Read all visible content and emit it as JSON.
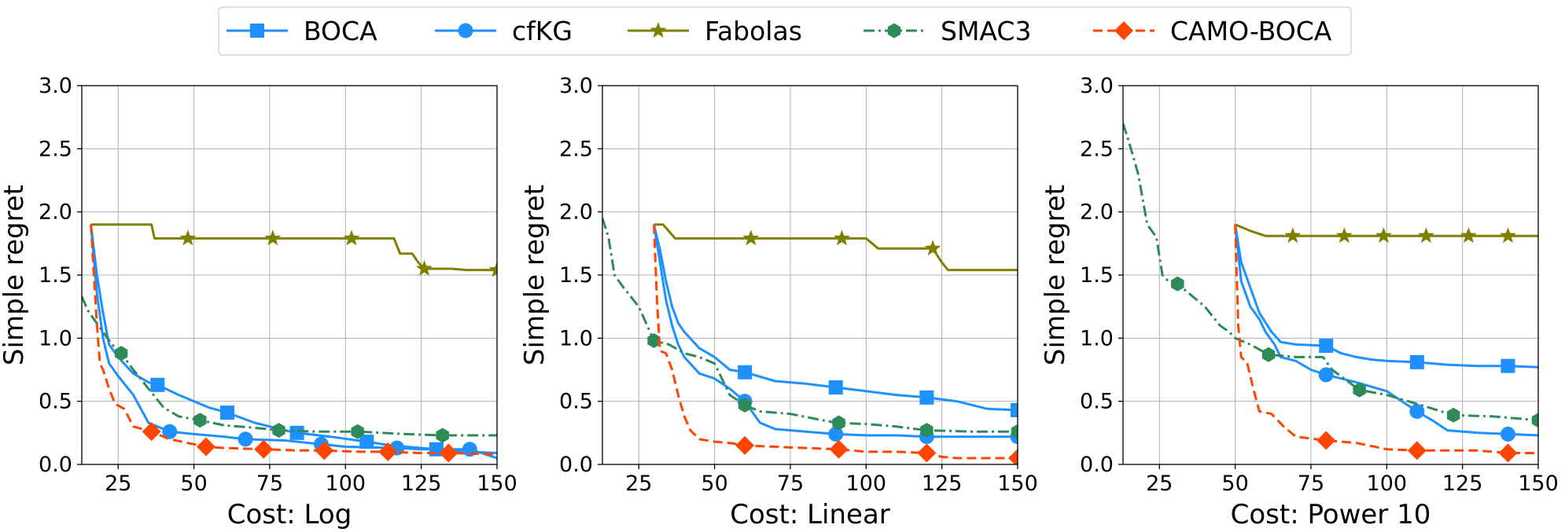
{
  "legend": {
    "placement": "top-center",
    "entries": [
      {
        "name": "BOCA",
        "color": "#1E90FF",
        "marker": "square",
        "dash": "solid"
      },
      {
        "name": "cfKG",
        "color": "#1E90FF",
        "marker": "circle",
        "dash": "solid"
      },
      {
        "name": "Fabolas",
        "color": "#808000",
        "marker": "star",
        "dash": "solid"
      },
      {
        "name": "SMAC3",
        "color": "#2E8B57",
        "marker": "hexagon",
        "dash": "dashdot"
      },
      {
        "name": "CAMO-BOCA",
        "color": "#FF4500",
        "marker": "diamond",
        "dash": "dashed"
      }
    ]
  },
  "chart_data": [
    {
      "type": "line",
      "xlabel": "Cost: Log",
      "ylabel": "Simple regret",
      "xlim": [
        13,
        150
      ],
      "ylim": [
        0,
        3.0
      ],
      "xticks": [
        25,
        50,
        75,
        100,
        125,
        150
      ],
      "yticks": [
        0.0,
        0.5,
        1.0,
        1.5,
        2.0,
        2.5,
        3.0
      ],
      "grid": true,
      "series": [
        {
          "name": "BOCA",
          "x": [
            16,
            18,
            20,
            22,
            25,
            30,
            35,
            38,
            45,
            55,
            61,
            70,
            80,
            84,
            95,
            107,
            115,
            125,
            130,
            140,
            150
          ],
          "y": [
            1.9,
            1.5,
            1.2,
            0.95,
            0.85,
            0.72,
            0.65,
            0.63,
            0.55,
            0.45,
            0.41,
            0.33,
            0.27,
            0.25,
            0.22,
            0.18,
            0.15,
            0.13,
            0.12,
            0.1,
            0.09
          ],
          "markers_x": [
            38,
            61,
            84,
            107,
            130
          ]
        },
        {
          "name": "cfKG",
          "x": [
            16,
            18,
            20,
            22,
            25,
            30,
            35,
            42,
            50,
            60,
            67,
            80,
            92,
            100,
            117,
            125,
            141,
            150
          ],
          "y": [
            1.9,
            1.35,
            1.0,
            0.8,
            0.7,
            0.55,
            0.33,
            0.26,
            0.24,
            0.22,
            0.2,
            0.19,
            0.16,
            0.14,
            0.13,
            0.12,
            0.12,
            0.05
          ],
          "markers_x": [
            42,
            67,
            92,
            117,
            141
          ]
        },
        {
          "name": "Fabolas",
          "x": [
            16,
            20,
            30,
            36,
            37,
            48,
            60,
            76,
            90,
            102,
            110,
            116,
            118,
            122,
            124,
            126,
            135,
            140,
            150
          ],
          "y": [
            1.9,
            1.9,
            1.9,
            1.9,
            1.79,
            1.79,
            1.79,
            1.79,
            1.79,
            1.79,
            1.79,
            1.79,
            1.67,
            1.67,
            1.6,
            1.55,
            1.55,
            1.54,
            1.54
          ],
          "markers_x": [
            48,
            76,
            102,
            126,
            150
          ]
        },
        {
          "name": "SMAC3",
          "x": [
            13,
            15,
            17,
            20,
            23,
            26,
            30,
            35,
            40,
            45,
            52,
            60,
            70,
            78,
            90,
            104,
            120,
            132,
            150
          ],
          "y": [
            1.33,
            1.22,
            1.15,
            1.05,
            0.95,
            0.88,
            0.75,
            0.6,
            0.45,
            0.38,
            0.35,
            0.31,
            0.29,
            0.27,
            0.26,
            0.26,
            0.24,
            0.23,
            0.23
          ],
          "markers_x": [
            26,
            52,
            78,
            104,
            132
          ]
        },
        {
          "name": "CAMO-BOCA",
          "x": [
            16,
            17,
            18,
            19,
            20,
            22,
            24,
            27,
            30,
            36,
            42,
            50,
            54,
            60,
            73,
            85,
            93,
            105,
            114,
            125,
            134,
            150
          ],
          "y": [
            1.9,
            1.5,
            1.1,
            0.8,
            0.75,
            0.6,
            0.48,
            0.44,
            0.3,
            0.26,
            0.2,
            0.16,
            0.14,
            0.13,
            0.12,
            0.11,
            0.11,
            0.1,
            0.1,
            0.09,
            0.09,
            0.08
          ],
          "markers_x": [
            36,
            54,
            73,
            93,
            114,
            134
          ]
        }
      ]
    },
    {
      "type": "line",
      "xlabel": "Cost: Linear",
      "ylabel": "Simple regret",
      "xlim": [
        13,
        150
      ],
      "ylim": [
        0,
        3.0
      ],
      "xticks": [
        25,
        50,
        75,
        100,
        125,
        150
      ],
      "yticks": [
        0.0,
        0.5,
        1.0,
        1.5,
        2.0,
        2.5,
        3.0
      ],
      "grid": true,
      "series": [
        {
          "name": "BOCA",
          "x": [
            30,
            32,
            34,
            36,
            38,
            40,
            45,
            50,
            55,
            60,
            70,
            80,
            90,
            100,
            110,
            120,
            130,
            140,
            150
          ],
          "y": [
            1.9,
            1.7,
            1.45,
            1.25,
            1.12,
            1.05,
            0.92,
            0.85,
            0.75,
            0.73,
            0.66,
            0.64,
            0.61,
            0.58,
            0.55,
            0.53,
            0.5,
            0.44,
            0.43
          ],
          "markers_x": [
            60,
            90,
            120,
            150
          ]
        },
        {
          "name": "cfKG",
          "x": [
            30,
            32,
            34,
            36,
            38,
            40,
            45,
            50,
            55,
            60,
            65,
            70,
            80,
            90,
            100,
            110,
            120,
            130,
            150
          ],
          "y": [
            1.9,
            1.6,
            1.3,
            1.1,
            0.95,
            0.85,
            0.72,
            0.68,
            0.6,
            0.5,
            0.33,
            0.28,
            0.26,
            0.24,
            0.23,
            0.23,
            0.22,
            0.22,
            0.22
          ],
          "markers_x": [
            60,
            90,
            120,
            150
          ]
        },
        {
          "name": "Fabolas",
          "x": [
            30,
            33,
            37,
            45,
            62,
            80,
            92,
            100,
            104,
            110,
            120,
            122,
            125,
            127,
            140,
            150
          ],
          "y": [
            1.9,
            1.9,
            1.79,
            1.79,
            1.79,
            1.79,
            1.79,
            1.79,
            1.71,
            1.71,
            1.71,
            1.71,
            1.6,
            1.54,
            1.54,
            1.54
          ],
          "markers_x": [
            62,
            92,
            122
          ]
        },
        {
          "name": "SMAC3",
          "x": [
            13,
            15,
            17,
            20,
            25,
            30,
            35,
            40,
            45,
            50,
            55,
            60,
            65,
            75,
            90,
            100,
            110,
            120,
            135,
            150
          ],
          "y": [
            1.95,
            1.8,
            1.5,
            1.4,
            1.25,
            0.98,
            0.95,
            0.88,
            0.85,
            0.8,
            0.55,
            0.47,
            0.42,
            0.4,
            0.33,
            0.32,
            0.3,
            0.27,
            0.26,
            0.26
          ],
          "markers_x": [
            30,
            60,
            91,
            120,
            150
          ]
        },
        {
          "name": "CAMO-BOCA",
          "x": [
            30,
            31,
            32,
            34,
            36,
            38,
            40,
            42,
            45,
            50,
            55,
            60,
            70,
            80,
            91,
            100,
            110,
            120,
            125,
            130,
            150
          ],
          "y": [
            1.9,
            1.3,
            0.9,
            0.88,
            0.75,
            0.55,
            0.38,
            0.27,
            0.2,
            0.18,
            0.17,
            0.15,
            0.14,
            0.13,
            0.12,
            0.1,
            0.1,
            0.09,
            0.06,
            0.05,
            0.05
          ],
          "markers_x": [
            60,
            91,
            120,
            150
          ]
        }
      ]
    },
    {
      "type": "line",
      "xlabel": "Cost: Power 10",
      "ylabel": "Simple regret",
      "xlim": [
        13,
        150
      ],
      "ylim": [
        0,
        3.0
      ],
      "xticks": [
        25,
        50,
        75,
        100,
        125,
        150
      ],
      "yticks": [
        0.0,
        0.5,
        1.0,
        1.5,
        2.0,
        2.5,
        3.0
      ],
      "grid": true,
      "series": [
        {
          "name": "BOCA",
          "x": [
            50,
            52,
            55,
            58,
            62,
            65,
            70,
            80,
            85,
            90,
            95,
            100,
            110,
            120,
            130,
            140,
            150
          ],
          "y": [
            1.9,
            1.6,
            1.4,
            1.2,
            1.05,
            0.97,
            0.95,
            0.94,
            0.88,
            0.85,
            0.83,
            0.82,
            0.81,
            0.79,
            0.78,
            0.78,
            0.77
          ],
          "markers_x": [
            80,
            110,
            140
          ]
        },
        {
          "name": "cfKG",
          "x": [
            50,
            52,
            55,
            58,
            60,
            63,
            65,
            70,
            75,
            80,
            90,
            100,
            110,
            115,
            120,
            130,
            140,
            150
          ],
          "y": [
            1.9,
            1.45,
            1.25,
            1.15,
            1.05,
            0.95,
            0.85,
            0.82,
            0.75,
            0.71,
            0.65,
            0.58,
            0.42,
            0.35,
            0.27,
            0.25,
            0.24,
            0.23
          ],
          "markers_x": [
            80,
            110,
            140
          ]
        },
        {
          "name": "Fabolas",
          "x": [
            50,
            55,
            60,
            69,
            86,
            99,
            113,
            127,
            140,
            150
          ],
          "y": [
            1.9,
            1.85,
            1.81,
            1.81,
            1.81,
            1.81,
            1.81,
            1.81,
            1.81,
            1.81
          ],
          "markers_x": [
            69,
            86,
            99,
            113,
            127,
            140
          ]
        },
        {
          "name": "SMAC3",
          "x": [
            13,
            15,
            18,
            21,
            24,
            26,
            28,
            31,
            35,
            40,
            45,
            48,
            50,
            55,
            61,
            70,
            79,
            82,
            91,
            100,
            110,
            122,
            135,
            150
          ],
          "y": [
            2.7,
            2.55,
            2.3,
            1.9,
            1.8,
            1.5,
            1.45,
            1.43,
            1.35,
            1.25,
            1.1,
            1.05,
            1.0,
            0.95,
            0.87,
            0.85,
            0.85,
            0.75,
            0.59,
            0.55,
            0.48,
            0.39,
            0.38,
            0.35
          ],
          "markers_x": [
            31,
            61,
            91,
            122,
            150
          ]
        },
        {
          "name": "CAMO-BOCA",
          "x": [
            50,
            51,
            52,
            54,
            56,
            58,
            62,
            66,
            70,
            80,
            90,
            100,
            110,
            120,
            130,
            140,
            150
          ],
          "y": [
            1.9,
            1.1,
            0.85,
            0.8,
            0.6,
            0.42,
            0.4,
            0.3,
            0.22,
            0.19,
            0.17,
            0.12,
            0.11,
            0.11,
            0.11,
            0.09,
            0.09
          ],
          "markers_x": [
            80,
            110,
            140
          ]
        }
      ]
    }
  ]
}
